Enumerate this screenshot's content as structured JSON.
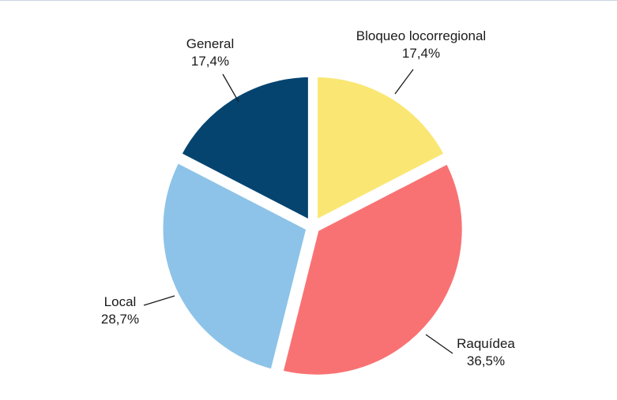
{
  "chart_data": {
    "type": "pie",
    "title": "",
    "start_angle_deg": 0,
    "direction": "clockwise",
    "exploded": true,
    "slices": [
      {
        "name": "Bloqueo locorregional",
        "value": 17.4,
        "label": "17,4%",
        "color": "#fae773"
      },
      {
        "name": "Raquídea",
        "value": 36.5,
        "label": "36,5%",
        "color": "#f97273"
      },
      {
        "name": "Local",
        "value": 28.7,
        "label": "28,7%",
        "color": "#8dc3e8"
      },
      {
        "name": "General",
        "value": 17.4,
        "label": "17,4%",
        "color": "#04446f"
      }
    ],
    "legend": "none"
  }
}
